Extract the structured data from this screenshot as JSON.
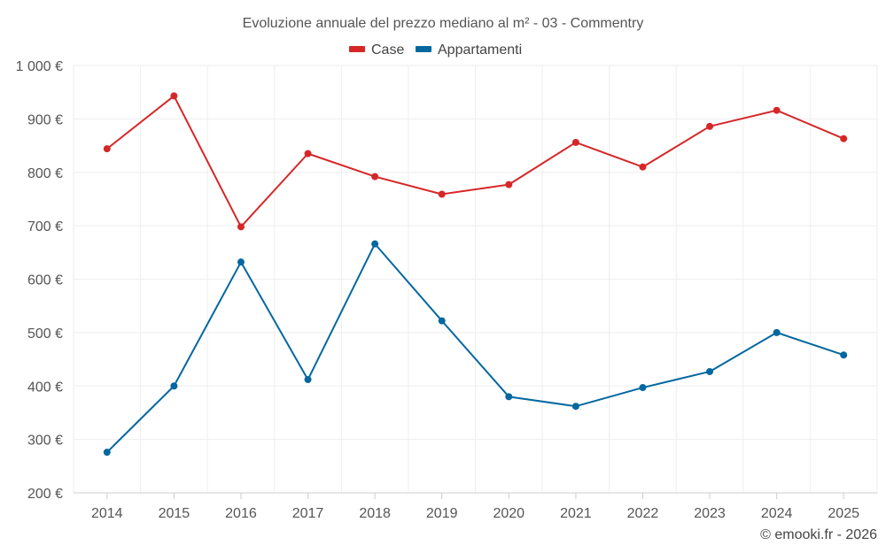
{
  "chart_data": {
    "type": "line",
    "title": "Evoluzione annuale del prezzo mediano al m² - 03 - Commentry",
    "categories": [
      "2014",
      "2015",
      "2016",
      "2017",
      "2018",
      "2019",
      "2020",
      "2021",
      "2022",
      "2023",
      "2024",
      "2025"
    ],
    "series": [
      {
        "name": "Case",
        "color": "#d62728",
        "values": [
          844,
          943,
          698,
          835,
          792,
          759,
          777,
          856,
          810,
          886,
          916,
          863
        ]
      },
      {
        "name": "Appartamenti",
        "color": "#03689f",
        "values": [
          276,
          400,
          632,
          412,
          666,
          522,
          380,
          362,
          397,
          427,
          500,
          458
        ]
      }
    ],
    "ylim": [
      200,
      1000
    ],
    "yticks": [
      200,
      300,
      400,
      500,
      600,
      700,
      800,
      900,
      1000
    ],
    "ytick_labels": [
      "200 €",
      "300 €",
      "400 €",
      "500 €",
      "600 €",
      "700 €",
      "800 €",
      "900 €",
      "1 000 €"
    ],
    "xlabel": "",
    "ylabel": "",
    "grid": true,
    "legend_position": "top-center"
  },
  "credit": "© emooki.fr - 2026"
}
